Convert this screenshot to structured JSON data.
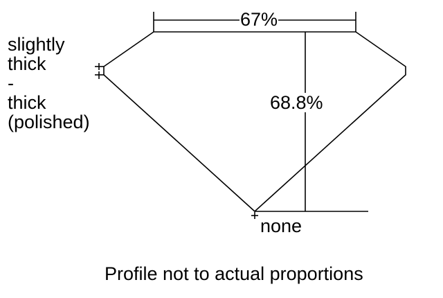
{
  "girdle_label": [
    "slightly",
    "thick",
    "-",
    "thick",
    "(polished)"
  ],
  "table_percent": "67%",
  "depth_percent": "68.8%",
  "culet_label": "none",
  "caption": "Profile not to actual proportions",
  "colors": {
    "line": "#000000",
    "background": "#ffffff"
  }
}
